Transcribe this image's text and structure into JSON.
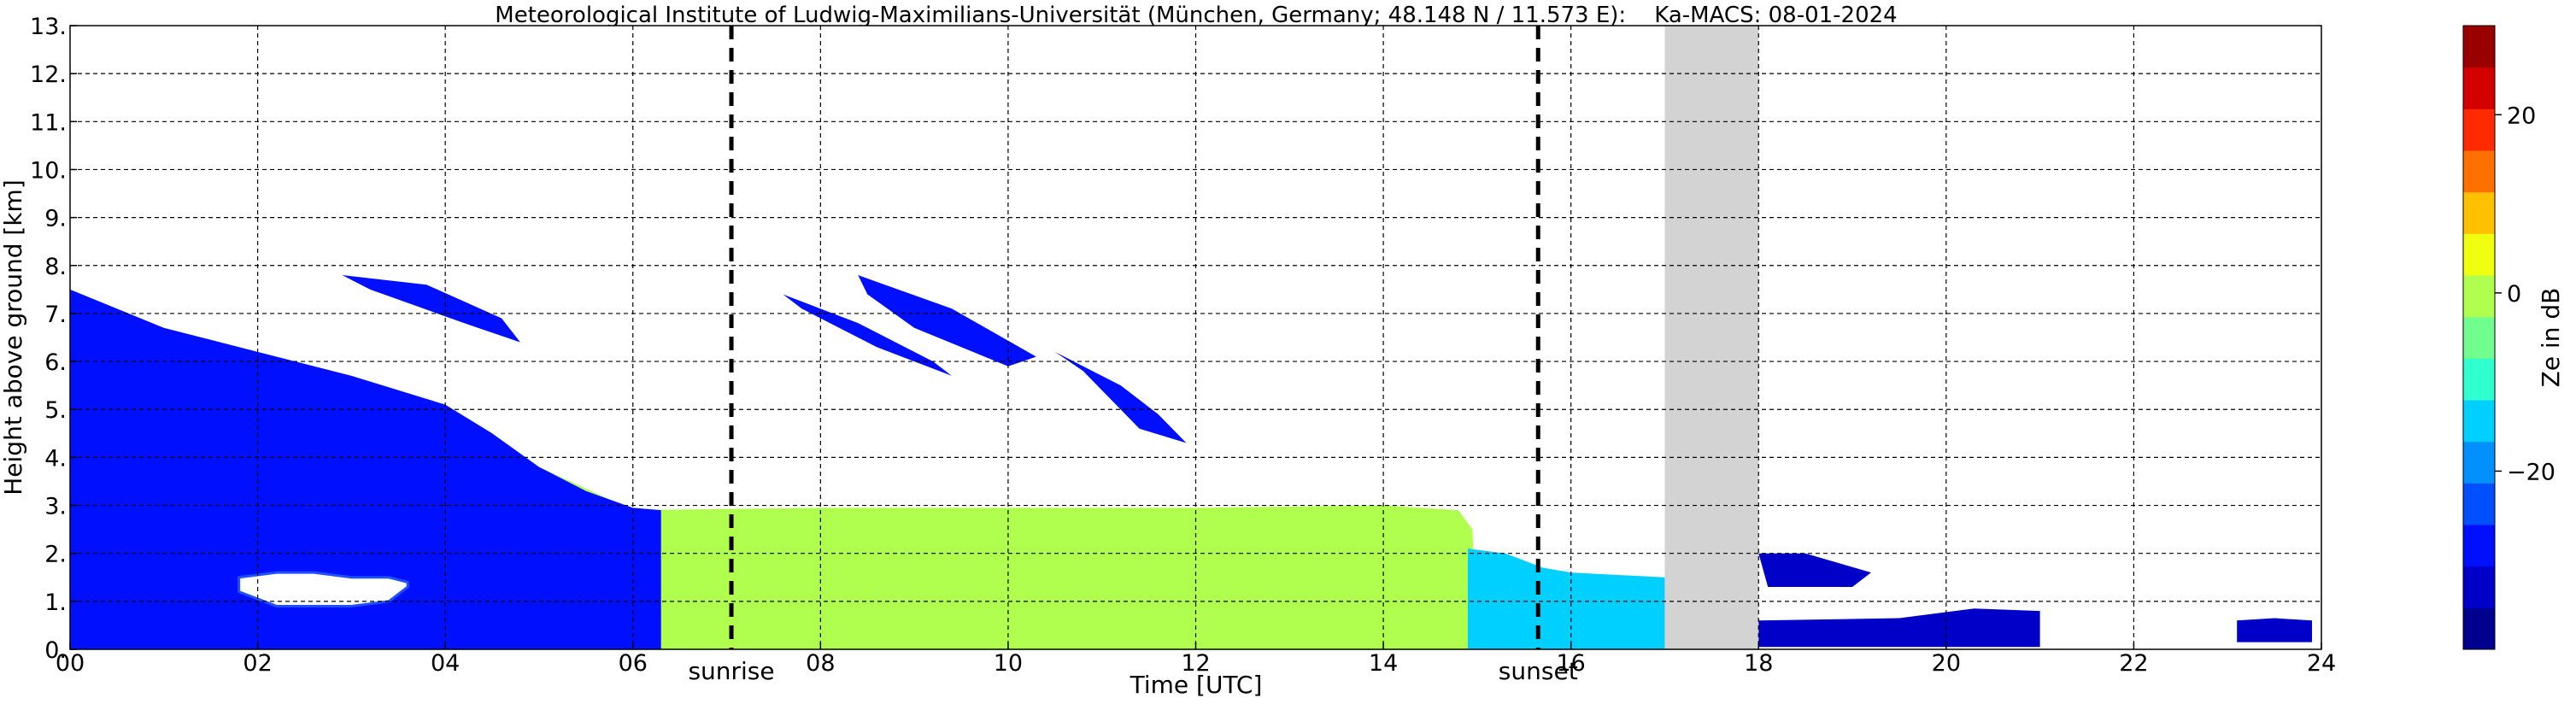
{
  "chart_data": {
    "type": "heatmap",
    "title": "Meteorological Institute of Ludwig-Maximilians-Universität (München, Germany; 48.148 N / 11.573 E):    Ka-MACS: 08-01-2024",
    "xlabel": "Time [UTC]",
    "ylabel": "Height above ground [km]",
    "xlim": [
      0,
      24
    ],
    "ylim": [
      0,
      13
    ],
    "x_ticks": [
      "00",
      "02",
      "04",
      "06",
      "08",
      "10",
      "12",
      "14",
      "16",
      "18",
      "20",
      "22",
      "24"
    ],
    "y_ticks": [
      "0.",
      "1.",
      "2.",
      "3.",
      "4.",
      "5.",
      "6.",
      "7.",
      "8.",
      "9.",
      "10.",
      "11.",
      "12.",
      "13."
    ],
    "grid": true,
    "markers": [
      {
        "label": "sunrise",
        "x": 7.05
      },
      {
        "label": "sunset",
        "x": 15.65
      }
    ],
    "no_data": [
      {
        "x_start": 17.0,
        "x_end": 18.0
      }
    ],
    "colorbar": {
      "label": "Ze in dB",
      "range": [
        -40,
        30
      ],
      "ticks": [
        "20",
        "0",
        "−20"
      ],
      "tick_values": [
        20,
        0,
        -20
      ],
      "colors": [
        "#00008f",
        "#0000c8",
        "#0010ff",
        "#0050ff",
        "#0090ff",
        "#00d0ff",
        "#30ffcf",
        "#70ff8f",
        "#b0ff4f",
        "#f0ff10",
        "#ffc000",
        "#ff7000",
        "#ff2a00",
        "#d40000",
        "#9a0000"
      ]
    },
    "echoes": [
      {
        "name": "low-cloud",
        "ze": 0,
        "x": [
          0.0,
          1.0,
          2.0,
          3.0,
          4.0,
          5.0,
          6.0,
          8.0,
          10.0,
          12.0,
          14.0,
          14.8,
          14.95,
          15.0
        ],
        "top": [
          7.2,
          6.5,
          5.9,
          5.4,
          4.8,
          3.8,
          2.9,
          2.95,
          2.95,
          2.95,
          3.0,
          2.9,
          2.5,
          0.0
        ]
      },
      {
        "name": "anvil-edge",
        "ze": -28,
        "x": [
          0.0,
          1.0,
          2.0,
          3.0,
          4.0,
          4.5,
          5.0,
          5.5,
          6.0,
          6.3
        ],
        "top": [
          7.5,
          6.7,
          6.2,
          5.7,
          5.1,
          4.5,
          3.8,
          3.3,
          2.95,
          2.9
        ]
      },
      {
        "name": "clear-gap",
        "ze": null,
        "x": [
          1.8,
          2.2,
          2.6,
          3.0,
          3.4,
          3.6
        ],
        "lower": [
          1.2,
          0.9,
          0.9,
          0.9,
          1.0,
          1.3
        ],
        "upper": [
          1.5,
          1.6,
          1.6,
          1.5,
          1.5,
          1.4
        ]
      },
      {
        "name": "late-layer",
        "ze": -15,
        "x": [
          14.9,
          15.3,
          15.7,
          16.0,
          16.5,
          17.0
        ],
        "top": [
          2.1,
          2.0,
          1.7,
          1.6,
          1.55,
          1.5
        ]
      },
      {
        "name": "cirrus-1",
        "ze": -30,
        "x": [
          2.9,
          3.8,
          4.6,
          4.8,
          4.2,
          3.2
        ],
        "y": [
          7.8,
          7.6,
          6.9,
          6.4,
          6.8,
          7.5
        ]
      },
      {
        "name": "cirrus-2",
        "ze": -30,
        "x": [
          7.6,
          8.4,
          9.2,
          9.4,
          8.6,
          7.8
        ],
        "y": [
          7.4,
          6.8,
          6.0,
          5.7,
          6.3,
          7.1
        ]
      },
      {
        "name": "cirrus-3",
        "ze": -30,
        "x": [
          8.4,
          9.4,
          10.3,
          10.0,
          9.0,
          8.5
        ],
        "y": [
          7.8,
          7.1,
          6.1,
          5.9,
          6.7,
          7.4
        ]
      },
      {
        "name": "cirrus-4",
        "ze": -30,
        "x": [
          10.5,
          11.2,
          11.6,
          11.9,
          11.4,
          10.8
        ],
        "y": [
          6.2,
          5.5,
          4.9,
          4.3,
          4.6,
          5.8
        ]
      },
      {
        "name": "evening-blobs",
        "ze": -32,
        "x": [
          18.0,
          18.5,
          19.2,
          19.0,
          18.1
        ],
        "y": [
          2.0,
          2.0,
          1.6,
          1.3,
          1.3
        ]
      },
      {
        "name": "surface-echo",
        "ze": -32,
        "x": [
          18.0,
          19.5,
          20.3,
          21.0,
          21.0,
          18.0
        ],
        "y": [
          0.6,
          0.65,
          0.85,
          0.8,
          0.05,
          0.05
        ]
      },
      {
        "name": "late-surface",
        "ze": -32,
        "x": [
          23.1,
          23.5,
          23.9,
          23.9,
          23.1
        ],
        "y": [
          0.6,
          0.65,
          0.6,
          0.15,
          0.15
        ]
      }
    ]
  }
}
